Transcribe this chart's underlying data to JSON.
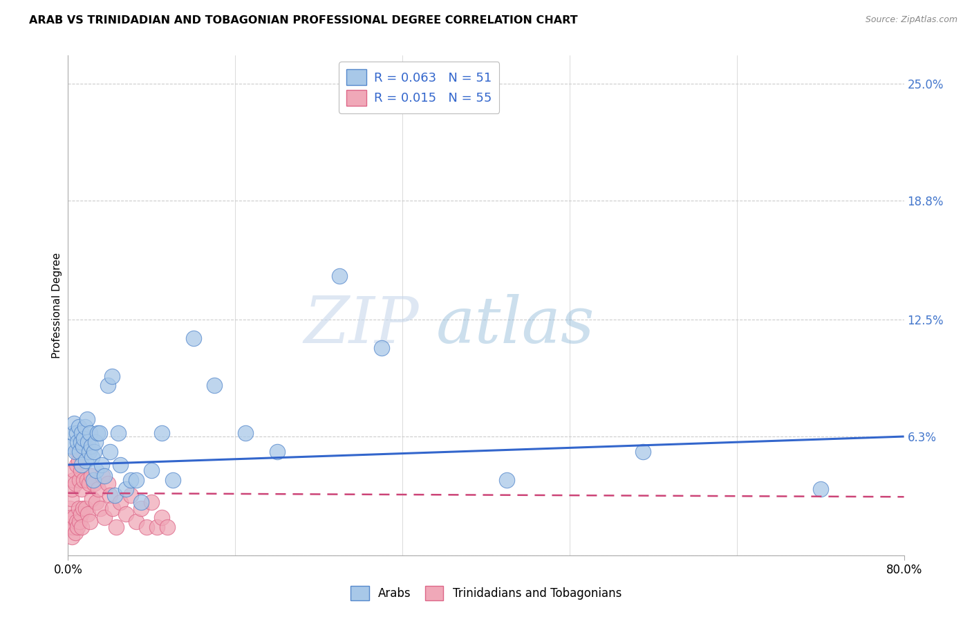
{
  "title": "ARAB VS TRINIDADIAN AND TOBAGONIAN PROFESSIONAL DEGREE CORRELATION CHART",
  "source": "Source: ZipAtlas.com",
  "ylabel_label": "Professional Degree",
  "xlim": [
    0.0,
    0.8
  ],
  "ylim": [
    0.0,
    0.265
  ],
  "arab_R": 0.063,
  "arab_N": 51,
  "tnt_R": 0.015,
  "tnt_N": 55,
  "arab_color": "#a8c8e8",
  "arab_edge": "#5588cc",
  "tnt_color": "#f0a8b8",
  "tnt_edge": "#dd6688",
  "arab_scatter_x": [
    0.003,
    0.005,
    0.006,
    0.007,
    0.008,
    0.009,
    0.01,
    0.011,
    0.012,
    0.013,
    0.013,
    0.014,
    0.015,
    0.016,
    0.017,
    0.018,
    0.019,
    0.02,
    0.021,
    0.022,
    0.023,
    0.024,
    0.025,
    0.026,
    0.027,
    0.028,
    0.03,
    0.032,
    0.035,
    0.038,
    0.04,
    0.042,
    0.045,
    0.048,
    0.05,
    0.055,
    0.06,
    0.065,
    0.07,
    0.08,
    0.09,
    0.1,
    0.12,
    0.14,
    0.17,
    0.2,
    0.26,
    0.3,
    0.42,
    0.55,
    0.72
  ],
  "arab_scatter_y": [
    0.058,
    0.065,
    0.07,
    0.055,
    0.065,
    0.06,
    0.068,
    0.055,
    0.06,
    0.065,
    0.048,
    0.058,
    0.062,
    0.068,
    0.05,
    0.072,
    0.06,
    0.055,
    0.065,
    0.058,
    0.052,
    0.04,
    0.055,
    0.06,
    0.045,
    0.065,
    0.065,
    0.048,
    0.042,
    0.09,
    0.055,
    0.095,
    0.032,
    0.065,
    0.048,
    0.035,
    0.04,
    0.04,
    0.028,
    0.045,
    0.065,
    0.04,
    0.115,
    0.09,
    0.065,
    0.055,
    0.148,
    0.11,
    0.04,
    0.055,
    0.035
  ],
  "tnt_scatter_x": [
    0.001,
    0.002,
    0.003,
    0.003,
    0.004,
    0.004,
    0.005,
    0.005,
    0.006,
    0.006,
    0.007,
    0.007,
    0.008,
    0.008,
    0.009,
    0.009,
    0.01,
    0.01,
    0.011,
    0.011,
    0.012,
    0.012,
    0.013,
    0.013,
    0.014,
    0.015,
    0.015,
    0.016,
    0.017,
    0.018,
    0.019,
    0.02,
    0.021,
    0.022,
    0.023,
    0.025,
    0.027,
    0.029,
    0.031,
    0.033,
    0.035,
    0.038,
    0.04,
    0.043,
    0.046,
    0.05,
    0.055,
    0.06,
    0.065,
    0.07,
    0.075,
    0.08,
    0.085,
    0.09,
    0.095
  ],
  "tnt_scatter_y": [
    0.015,
    0.025,
    0.02,
    0.03,
    0.01,
    0.035,
    0.015,
    0.04,
    0.02,
    0.045,
    0.012,
    0.038,
    0.018,
    0.048,
    0.015,
    0.055,
    0.025,
    0.05,
    0.018,
    0.04,
    0.022,
    0.045,
    0.015,
    0.035,
    0.025,
    0.055,
    0.04,
    0.058,
    0.025,
    0.04,
    0.022,
    0.038,
    0.018,
    0.042,
    0.03,
    0.038,
    0.028,
    0.035,
    0.025,
    0.042,
    0.02,
    0.038,
    0.032,
    0.025,
    0.015,
    0.028,
    0.022,
    0.032,
    0.018,
    0.025,
    0.015,
    0.028,
    0.015,
    0.02,
    0.015
  ],
  "arab_trend_x0": 0.0,
  "arab_trend_y0": 0.048,
  "arab_trend_x1": 0.8,
  "arab_trend_y1": 0.063,
  "tnt_trend_x0": 0.0,
  "tnt_trend_y0": 0.033,
  "tnt_trend_x1": 0.8,
  "tnt_trend_y1": 0.031,
  "ytick_positions": [
    0.0,
    0.063,
    0.125,
    0.188,
    0.25
  ],
  "ytick_labels": [
    "",
    "6.3%",
    "12.5%",
    "18.8%",
    "25.0%"
  ],
  "xtick_positions": [
    0.0,
    0.16,
    0.32,
    0.48,
    0.64,
    0.8
  ],
  "xtick_labels_show": [
    "0.0%",
    "",
    "",
    "",
    "",
    "80.0%"
  ],
  "watermark_zip": "ZIP",
  "watermark_atlas": "atlas",
  "legend_arab_label": "Arabs",
  "legend_tnt_label": "Trinidadians and Tobagonians",
  "background_color": "#ffffff",
  "grid_color": "#cccccc",
  "trend_blue_color": "#3366cc",
  "trend_pink_color": "#cc4477",
  "right_label_color": "#4477cc"
}
